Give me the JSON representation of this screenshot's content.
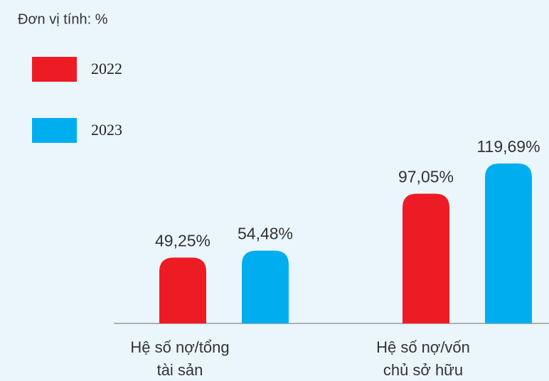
{
  "chart_data": {
    "type": "bar",
    "unit_note": "Đơn vị tính: %",
    "categories": [
      [
        "Hệ số nợ/tổng",
        "tài sản"
      ],
      [
        "Hệ số nợ/vốn",
        "chủ sở hữu"
      ]
    ],
    "series": [
      {
        "name": "2022",
        "color": "#ed1c24",
        "values": [
          49.25,
          97.05
        ],
        "value_labels": [
          "49,25%",
          "97,05%"
        ]
      },
      {
        "name": "2023",
        "color": "#00aeef",
        "values": [
          54.48,
          119.69
        ],
        "value_labels": [
          "54,48%",
          "119,69%"
        ]
      }
    ]
  }
}
